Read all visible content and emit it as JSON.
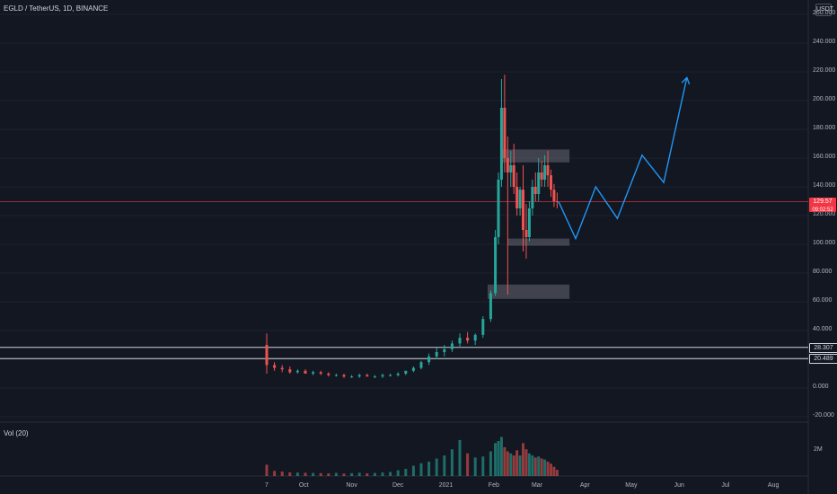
{
  "header": {
    "symbol_line": "EGLD / TetherUS, 1D, BINANCE"
  },
  "currency_label": "USDT",
  "volume_label": "Vol (20)",
  "volume_tick": "2M",
  "price_badge": {
    "value": "129.57",
    "countdown": "09:02:52"
  },
  "level_labels": [
    "28.307",
    "20.489"
  ],
  "colors": {
    "background": "#131722",
    "up": "#26a69a",
    "down": "#ef5350",
    "projection": "#2196f3",
    "price_line": "#f23645",
    "zone": "#787b86"
  },
  "chart_data": {
    "type": "candlestick",
    "title": "EGLD / TetherUS, 1D, BINANCE",
    "y_axis_ticks": [
      "260.000",
      "240.000",
      "220.000",
      "200.000",
      "180.000",
      "160.000",
      "140.000",
      "120.000",
      "100.000",
      "80.000",
      "60.000",
      "40.000",
      "20.000",
      "0.000",
      "-20.000"
    ],
    "ylim": [
      -20,
      260
    ],
    "x_axis_ticks": [
      "7",
      "Oct",
      "Nov",
      "Dec",
      "2021",
      "Feb",
      "Mar",
      "Apr",
      "May",
      "Jun",
      "Jul",
      "Aug"
    ],
    "series_price": [
      [
        "2020-09-07",
        30,
        38,
        10,
        16
      ],
      [
        "2020-09-12",
        16,
        18,
        12,
        14
      ],
      [
        "2020-09-17",
        14,
        16,
        11,
        13
      ],
      [
        "2020-09-22",
        13,
        15,
        10,
        11
      ],
      [
        "2020-09-27",
        11,
        13,
        10,
        12
      ],
      [
        "2020-10-02",
        12,
        13,
        10,
        10
      ],
      [
        "2020-10-07",
        10,
        12,
        9,
        11
      ],
      [
        "2020-10-12",
        11,
        12,
        9,
        10
      ],
      [
        "2020-10-17",
        10,
        11,
        8,
        9
      ],
      [
        "2020-10-22",
        9,
        10,
        8,
        9
      ],
      [
        "2020-10-27",
        9,
        10,
        7,
        8
      ],
      [
        "2020-11-01",
        8,
        9,
        7,
        8
      ],
      [
        "2020-11-06",
        8,
        10,
        7,
        9
      ],
      [
        "2020-11-11",
        9,
        10,
        8,
        8
      ],
      [
        "2020-11-16",
        8,
        9,
        7,
        8
      ],
      [
        "2020-11-21",
        8,
        10,
        7,
        9
      ],
      [
        "2020-11-26",
        9,
        10,
        8,
        9
      ],
      [
        "2020-12-01",
        9,
        11,
        8,
        10
      ],
      [
        "2020-12-06",
        10,
        12,
        9,
        12
      ],
      [
        "2020-12-11",
        12,
        15,
        11,
        14
      ],
      [
        "2020-12-16",
        14,
        19,
        13,
        18
      ],
      [
        "2020-12-21",
        18,
        24,
        16,
        22
      ],
      [
        "2020-12-26",
        22,
        28,
        20,
        25
      ],
      [
        "2020-12-31",
        25,
        30,
        22,
        27
      ],
      [
        "2021-01-05",
        27,
        33,
        25,
        31
      ],
      [
        "2021-01-10",
        31,
        38,
        28,
        35
      ],
      [
        "2021-01-15",
        35,
        39,
        31,
        33
      ],
      [
        "2021-01-20",
        33,
        38,
        30,
        37
      ],
      [
        "2021-01-25",
        37,
        50,
        35,
        48
      ],
      [
        "2021-01-30",
        48,
        68,
        46,
        66
      ],
      [
        "2021-02-02",
        66,
        110,
        64,
        105
      ],
      [
        "2021-02-04",
        105,
        150,
        100,
        145
      ],
      [
        "2021-02-06",
        145,
        215,
        140,
        195
      ],
      [
        "2021-02-08",
        195,
        218,
        150,
        160
      ],
      [
        "2021-02-10",
        160,
        175,
        65,
        150
      ],
      [
        "2021-02-12",
        150,
        165,
        140,
        155
      ],
      [
        "2021-02-14",
        155,
        170,
        135,
        140
      ],
      [
        "2021-02-16",
        140,
        150,
        120,
        125
      ],
      [
        "2021-02-18",
        125,
        140,
        120,
        138
      ],
      [
        "2021-02-20",
        138,
        155,
        95,
        110
      ],
      [
        "2021-02-22",
        110,
        128,
        90,
        105
      ],
      [
        "2021-02-24",
        105,
        130,
        102,
        125
      ],
      [
        "2021-02-26",
        125,
        145,
        120,
        140
      ],
      [
        "2021-02-28",
        140,
        150,
        130,
        135
      ],
      [
        "2021-03-02",
        135,
        160,
        130,
        150
      ],
      [
        "2021-03-04",
        150,
        158,
        140,
        145
      ],
      [
        "2021-03-06",
        145,
        162,
        140,
        155
      ],
      [
        "2021-03-08",
        155,
        165,
        140,
        148
      ],
      [
        "2021-03-10",
        148,
        152,
        133,
        138
      ],
      [
        "2021-03-12",
        138,
        142,
        126,
        130
      ],
      [
        "2021-03-14",
        130,
        136,
        125,
        129.57
      ]
    ],
    "volume": [
      0.55,
      0.25,
      0.22,
      0.18,
      0.17,
      0.16,
      0.15,
      0.14,
      0.13,
      0.15,
      0.12,
      0.14,
      0.16,
      0.13,
      0.15,
      0.17,
      0.2,
      0.28,
      0.35,
      0.5,
      0.62,
      0.7,
      0.85,
      1.0,
      1.3,
      1.75,
      1.1,
      0.9,
      0.95,
      1.2,
      1.6,
      1.7,
      1.9,
      1.4,
      1.2,
      1.1,
      1.0,
      1.25,
      1.0,
      1.6,
      1.3,
      1.1,
      1.0,
      0.9,
      0.95,
      0.85,
      0.8,
      0.7,
      0.6,
      0.45,
      0.3
    ],
    "zones": [
      {
        "y_low": 157,
        "y_high": 166,
        "x_start": "2021-02-06",
        "x_end": "2021-03-22"
      },
      {
        "y_low": 99,
        "y_high": 104,
        "x_start": "2021-02-10",
        "x_end": "2021-03-22"
      },
      {
        "y_low": 62,
        "y_high": 72,
        "x_start": "2021-01-28",
        "x_end": "2021-03-22"
      }
    ],
    "horizontal_levels": [
      28.307,
      20.489
    ],
    "current_price": 129.57,
    "projection_path": [
      [
        "2021-03-15",
        129.57
      ],
      [
        "2021-03-26",
        104
      ],
      [
        "2021-04-08",
        140
      ],
      [
        "2021-04-22",
        118
      ],
      [
        "2021-05-08",
        162
      ],
      [
        "2021-05-22",
        143
      ],
      [
        "2021-06-06",
        216
      ]
    ]
  }
}
